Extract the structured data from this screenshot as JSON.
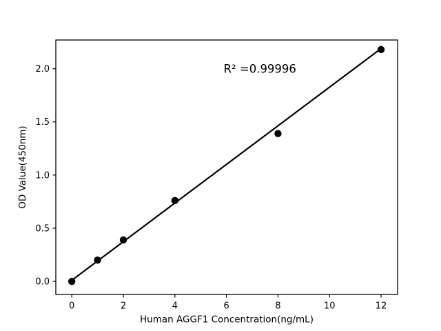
{
  "figure": {
    "background": "#ffffff"
  },
  "chart_data": {
    "type": "scatter",
    "title": "",
    "xlabel": "Human AGGF1 Concentration(ng/mL)",
    "ylabel": "OD Value(450nm)",
    "x": [
      0,
      1,
      2,
      4,
      8,
      12
    ],
    "y": [
      0.0,
      0.2,
      0.39,
      0.76,
      1.39,
      2.18
    ],
    "fit_line": {
      "x": [
        0,
        12
      ],
      "y": [
        0.01,
        2.19
      ]
    },
    "annotation": {
      "text": "R² =0.99996",
      "x": 7.3,
      "y": 2.0
    },
    "xticks": [
      0,
      2,
      4,
      6,
      8,
      10,
      12
    ],
    "xtick_labels": [
      "0",
      "2",
      "4",
      "6",
      "8",
      "10",
      "12"
    ],
    "yticks": [
      0.0,
      0.5,
      1.0,
      1.5,
      2.0
    ],
    "ytick_labels": [
      "0.0",
      "0.5",
      "1.0",
      "1.5",
      "2.0"
    ],
    "xlim": [
      -0.62,
      12.64
    ],
    "ylim": [
      -0.123,
      2.27
    ],
    "grid": false,
    "legend": "none",
    "marker_color": "#000000",
    "line_color": "#000000",
    "axis_color": "#000000",
    "background": "#ffffff"
  }
}
